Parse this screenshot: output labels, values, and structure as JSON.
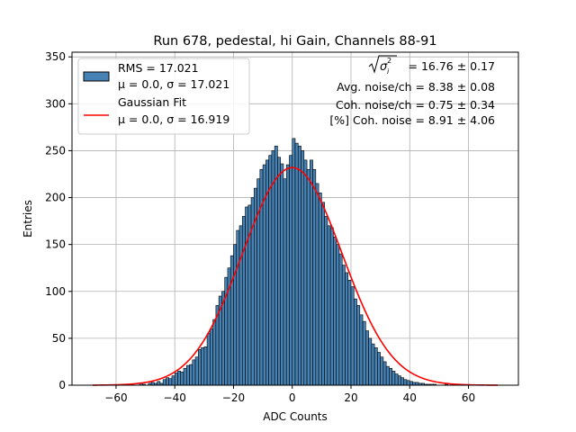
{
  "chart_data": {
    "type": "bar",
    "title": "Run 678, pedestal, hi Gain, Channels 88-91",
    "xlabel": "ADC Counts",
    "ylabel": "Entries",
    "xlim": [
      -75,
      77
    ],
    "ylim": [
      0,
      355
    ],
    "xticks": [
      -60,
      -40,
      -20,
      0,
      20,
      40,
      60
    ],
    "yticks": [
      0,
      50,
      100,
      150,
      200,
      250,
      300,
      350
    ],
    "grid": true,
    "legend_position": "top-left",
    "bin_width": 1,
    "hist_range": [
      -52,
      53
    ],
    "counts": [
      2,
      1,
      0,
      2,
      3,
      2,
      4,
      2,
      6,
      8,
      7,
      10,
      13,
      15,
      14,
      18,
      21,
      22,
      27,
      30,
      38,
      40,
      41,
      55,
      60,
      70,
      85,
      95,
      100,
      115,
      125,
      138,
      150,
      165,
      170,
      180,
      190,
      192,
      200,
      210,
      220,
      230,
      235,
      240,
      245,
      250,
      255,
      243,
      236,
      220,
      235,
      245,
      263,
      258,
      255,
      250,
      240,
      230,
      240,
      230,
      215,
      205,
      195,
      180,
      170,
      168,
      158,
      150,
      140,
      128,
      120,
      112,
      105,
      92,
      85,
      75,
      68,
      58,
      50,
      44,
      40,
      35,
      30,
      25,
      20,
      18,
      15,
      12,
      10,
      8,
      6,
      5,
      4,
      3,
      3,
      2,
      2,
      1,
      1,
      1,
      1,
      0,
      0,
      0,
      1
    ],
    "series": [
      {
        "name": "Gaussian Fit",
        "kind": "line",
        "color": "#ff0000",
        "mu": 0.0,
        "sigma": 16.919,
        "amplitude": 232,
        "x_range": [
          -68,
          70
        ]
      }
    ],
    "colors": {
      "bar_fill": "#4682b4",
      "bar_edge": "#000000",
      "fit_line": "#ff0000",
      "grid": "#b0b0b0"
    },
    "legend": [
      {
        "line1": "RMS = 17.021",
        "line2": "μ = 0.0, σ = 17.021",
        "marker": "patch"
      },
      {
        "line1": "Gaussian Fit",
        "line2": "μ = 0.0, σ = 16.919",
        "marker": "line"
      }
    ],
    "annotations": {
      "sigma_line_value": " = 16.76 ± 0.17",
      "avg_noise": "Avg. noise/ch = 8.38 ± 0.08",
      "coh_noise": "Coh. noise/ch = 0.75 ± 0.34",
      "pct_coh_noise": "[%] Coh. noise = 8.91 ± 4.06"
    }
  }
}
